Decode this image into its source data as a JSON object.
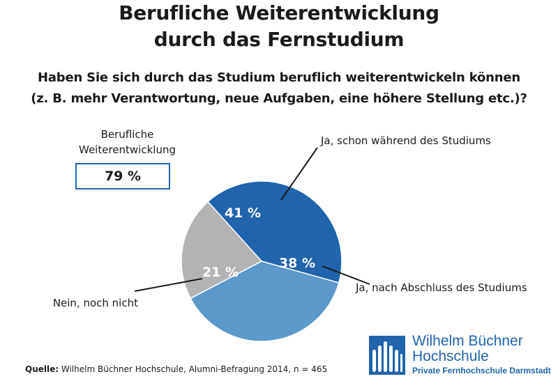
{
  "title": {
    "line1": "Berufliche Weiterentwicklung",
    "line2": "durch das Fernstudium"
  },
  "question": {
    "line1": "Haben Sie sich durch das Studium beruflich weiterentwickeln können",
    "line2": "(z. B. mehr Verantwortung, neue Aufgaben, eine höhere Stellung etc.)?"
  },
  "summary": {
    "label_line1": "Berufliche",
    "label_line2": "Weiterentwicklung",
    "value": "79 %"
  },
  "chart_data": {
    "type": "pie",
    "slices": [
      {
        "label": "Ja, schon während des Studiums",
        "value": 41,
        "value_label": "41 %",
        "color": "#1f64ad"
      },
      {
        "label": "Ja, nach Abschluss des Studiums",
        "value": 38,
        "value_label": "38 %",
        "color": "#5b98cb"
      },
      {
        "label": "Nein, noch nicht",
        "value": 21,
        "value_label": "21 %",
        "color": "#b3b3b3"
      }
    ]
  },
  "source": {
    "prefix": "Quelle:",
    "text": " Wilhelm Büchner Hochschule, Alumni-Befragung 2014, n = 465"
  },
  "logo": {
    "name_line1": "Wilhelm Büchner",
    "name_line2": "Hochschule",
    "tagline": "Private Fernhochschule Darmstadt",
    "color": "#1f64ad"
  }
}
